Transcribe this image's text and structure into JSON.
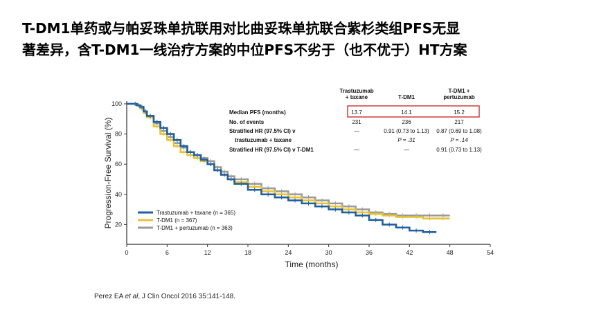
{
  "slide": {
    "title_line1": "T-DM1单药或与帕妥珠单抗联用对比曲妥珠单抗联合紫杉类组PFS无显",
    "title_line2": "著差异，含T-DM1一线治疗方案的中位PFS不劣于（也不优于）HT方案",
    "citation_author": "Perez EA ",
    "citation_etal": "et al",
    "citation_rest": ", J Clin Oncol 2016 35:141-148."
  },
  "chart_data": {
    "type": "line",
    "subtype": "kaplan-meier",
    "xlabel": "Time (months)",
    "ylabel": "Progression-Free Survival (%)",
    "xlim": [
      0,
      54
    ],
    "ylim": [
      0,
      100
    ],
    "x_ticks": [
      0,
      6,
      12,
      18,
      24,
      30,
      36,
      42,
      48,
      54
    ],
    "y_ticks": [
      20,
      40,
      60,
      80,
      100
    ],
    "grid": false,
    "legend_position": "bottom-left",
    "colors": {
      "trastuzumab_taxane": "#1f5fa0",
      "tdm1": "#e8c232",
      "tdm1_pertuzumab": "#9a9a9a",
      "highlight_box": "#c8312f"
    },
    "series": [
      {
        "name": "Trastuzumab + taxane (n = 365)",
        "color": "#1f5fa0",
        "x": [
          0,
          1,
          1.5,
          2,
          2.5,
          3,
          4,
          5,
          6,
          7,
          8,
          9,
          10,
          11,
          12,
          13,
          14,
          15,
          16,
          18,
          20,
          22,
          24,
          26,
          28,
          30,
          32,
          34,
          36,
          38,
          40,
          42,
          44,
          46
        ],
        "y": [
          100,
          100,
          99,
          98,
          95,
          92,
          88,
          84,
          80,
          76,
          72,
          68,
          66,
          63,
          60,
          56,
          53,
          50,
          47,
          43,
          40,
          38,
          36,
          34,
          32,
          30,
          28,
          26,
          23,
          20,
          18,
          16,
          15,
          15
        ]
      },
      {
        "name": "T-DM1 (n = 367)",
        "color": "#e8c232",
        "x": [
          0,
          1,
          1.5,
          2,
          2.5,
          3,
          4,
          5,
          6,
          7,
          8,
          9,
          10,
          11,
          12,
          13,
          14,
          15,
          16,
          18,
          20,
          22,
          24,
          26,
          28,
          30,
          32,
          34,
          36,
          38,
          40,
          42,
          44,
          46,
          48
        ],
        "y": [
          100,
          100,
          99,
          97,
          94,
          91,
          85,
          80,
          76,
          72,
          68,
          66,
          64,
          62,
          60,
          56,
          53,
          50,
          48,
          45,
          42,
          40,
          38,
          36,
          34,
          32,
          30,
          28,
          27,
          26,
          25,
          25,
          24,
          24,
          24
        ]
      },
      {
        "name": "T-DM1 + pertuzumab (n = 363)",
        "color": "#9a9a9a",
        "x": [
          0,
          1,
          1.5,
          2,
          2.5,
          3,
          4,
          5,
          6,
          7,
          8,
          9,
          10,
          11,
          12,
          13,
          14,
          15,
          16,
          18,
          20,
          22,
          24,
          26,
          28,
          30,
          32,
          34,
          36,
          38,
          40,
          42,
          44,
          46,
          48
        ],
        "y": [
          100,
          100,
          99,
          97,
          95,
          92,
          87,
          82,
          78,
          74,
          71,
          68,
          66,
          64,
          62,
          58,
          55,
          52,
          50,
          47,
          44,
          42,
          40,
          38,
          36,
          34,
          32,
          30,
          28,
          27,
          26,
          26,
          26,
          26,
          26
        ]
      }
    ],
    "table": {
      "columns": [
        "Trastuzumab + taxane",
        "T-DM1",
        "T-DM1 + pertuzumab"
      ],
      "col_header_lines": [
        [
          "Trastuzumab",
          "+ taxane"
        ],
        [
          "T-DM1"
        ],
        [
          "T-DM1 +",
          "pertuzumab"
        ]
      ],
      "rows": [
        {
          "label": "Median PFS (months)",
          "values": [
            "13.7",
            "14.1",
            "15.2"
          ],
          "highlighted": true
        },
        {
          "label": "No. of events",
          "values": [
            "231",
            "236",
            "217"
          ]
        },
        {
          "label": "Stratified HR (97.5% CI) v",
          "values": [
            "—",
            "0.91 (0.73 to 1.13)",
            "0.87 (0.69 to 1.08)"
          ]
        },
        {
          "label": "  trastuzumab + taxane",
          "values": [
            "",
            "P = .31",
            "P = .14"
          ]
        },
        {
          "label": "Stratified HR (97.5% CI) v T-DM1",
          "values": [
            "—",
            "—",
            "0.91 (0.73 to 1.13)"
          ]
        }
      ]
    }
  }
}
